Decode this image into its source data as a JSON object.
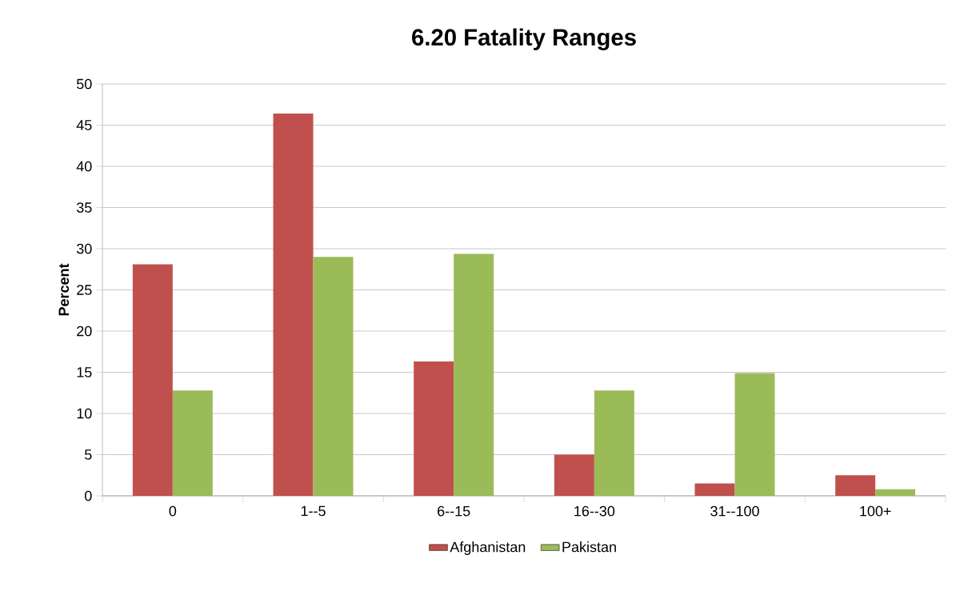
{
  "chart_data": {
    "type": "bar",
    "title": "6.20 Fatality Ranges",
    "ylabel": "Percent",
    "categories": [
      "0",
      "1--5",
      "6--15",
      "16--30",
      "31--100",
      "100+"
    ],
    "series": [
      {
        "name": "Afghanistan",
        "color": "#c0504d",
        "values": [
          28.1,
          46.4,
          16.3,
          5.0,
          1.5,
          2.5
        ]
      },
      {
        "name": "Pakistan",
        "color": "#9bbb59",
        "values": [
          12.8,
          29.0,
          29.4,
          12.8,
          14.9,
          0.8
        ]
      }
    ],
    "ylim": [
      0,
      50
    ],
    "yticks": [
      0,
      5,
      10,
      15,
      20,
      25,
      30,
      35,
      40,
      45,
      50
    ],
    "grid": "y",
    "legend": "bottom"
  }
}
